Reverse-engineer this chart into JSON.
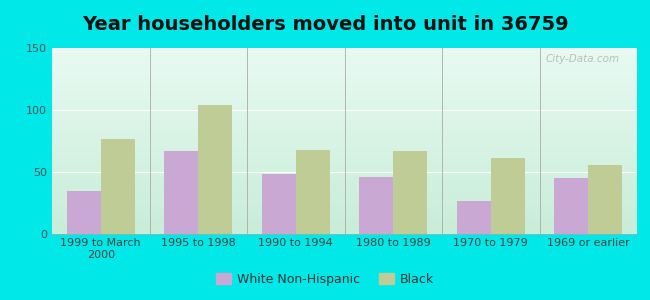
{
  "title": "Year householders moved into unit in 36759",
  "categories": [
    "1999 to March\n2000",
    "1995 to 1998",
    "1990 to 1994",
    "1980 to 1989",
    "1970 to 1979",
    "1969 or earlier"
  ],
  "white_values": [
    35,
    67,
    48,
    46,
    27,
    45
  ],
  "black_values": [
    77,
    104,
    68,
    67,
    61,
    56
  ],
  "white_color": "#c9a8d4",
  "black_color": "#c0cc96",
  "bg_outer": "#00e8e8",
  "bg_plot_top_left": "#e8faf2",
  "bg_plot_bottom_right": "#c8edd8",
  "ylim": [
    0,
    150
  ],
  "yticks": [
    0,
    50,
    100,
    150
  ],
  "bar_width": 0.35,
  "legend_labels": [
    "White Non-Hispanic",
    "Black"
  ],
  "watermark": "City-Data.com",
  "title_fontsize": 14,
  "tick_fontsize": 8,
  "legend_fontsize": 9
}
